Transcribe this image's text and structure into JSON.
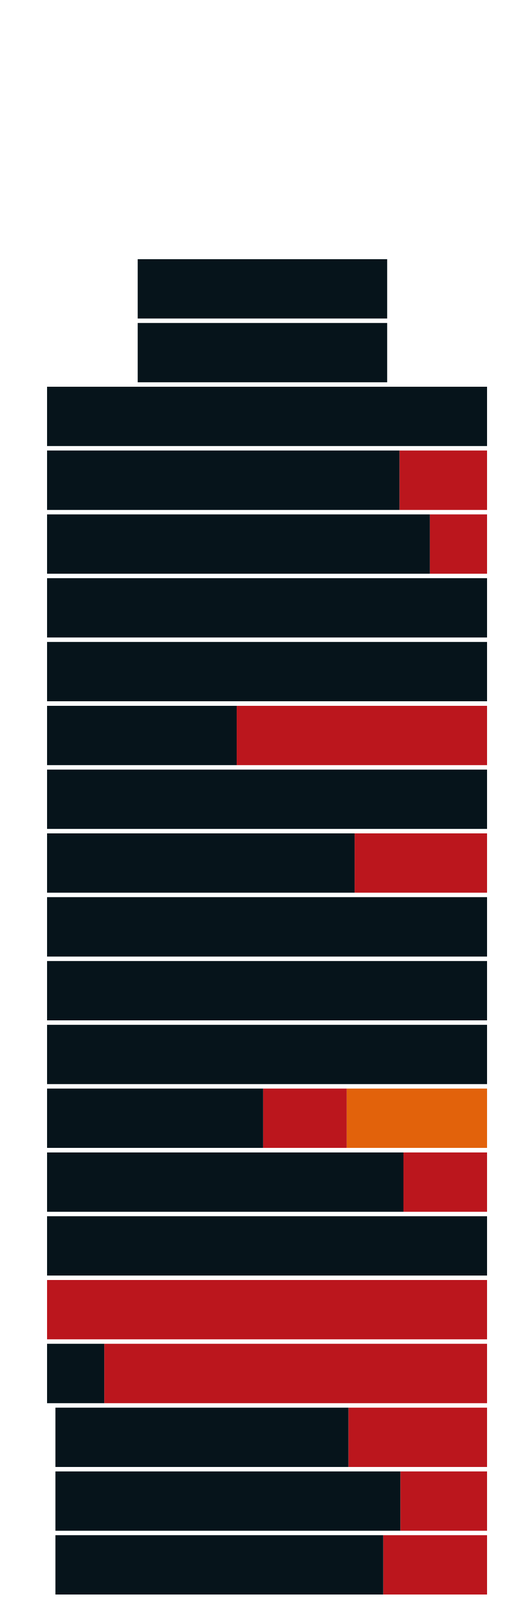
{
  "chart_data": {
    "type": "bar",
    "orientation": "horizontal",
    "grid": false,
    "tick_labels": false,
    "categories": [
      null,
      null,
      null,
      null,
      null,
      null,
      null,
      null,
      null,
      null,
      null,
      null,
      null,
      null,
      null,
      null,
      null,
      null,
      null,
      null,
      null
    ],
    "xlim": [
      0,
      100
    ],
    "series": [
      {
        "color": "#06141b",
        "values": [
          [
            20.6,
            77.3
          ],
          [
            20.6,
            77.3
          ],
          [
            0,
            100
          ],
          [
            0,
            80.1
          ],
          [
            0,
            87.0
          ],
          [
            0,
            100
          ],
          [
            0,
            100
          ],
          [
            0,
            43.1
          ],
          [
            0,
            100
          ],
          [
            0,
            69.9
          ],
          [
            0,
            100
          ],
          [
            0,
            100
          ],
          [
            0,
            100
          ],
          [
            0,
            49.1
          ],
          [
            0,
            81.0
          ],
          [
            0,
            100
          ],
          null,
          [
            0,
            13.0
          ],
          [
            1.9,
            68.5
          ],
          [
            1.9,
            80.3
          ],
          [
            1.9,
            76.4
          ]
        ]
      },
      {
        "color": "#bb161d",
        "values": [
          null,
          null,
          null,
          [
            80.1,
            100
          ],
          [
            87.0,
            100
          ],
          null,
          null,
          [
            43.1,
            100
          ],
          null,
          [
            69.9,
            100
          ],
          null,
          null,
          null,
          [
            49.1,
            68.1
          ],
          [
            81.0,
            100
          ],
          null,
          [
            0,
            100
          ],
          [
            13.0,
            100
          ],
          [
            68.5,
            100
          ],
          [
            80.3,
            100
          ],
          [
            76.4,
            100
          ]
        ]
      },
      {
        "color": "#e2620b",
        "values": [
          null,
          null,
          null,
          null,
          null,
          null,
          null,
          null,
          null,
          null,
          null,
          null,
          null,
          [
            68.1,
            100
          ],
          null,
          null,
          null,
          null,
          null,
          null,
          null
        ]
      }
    ]
  }
}
